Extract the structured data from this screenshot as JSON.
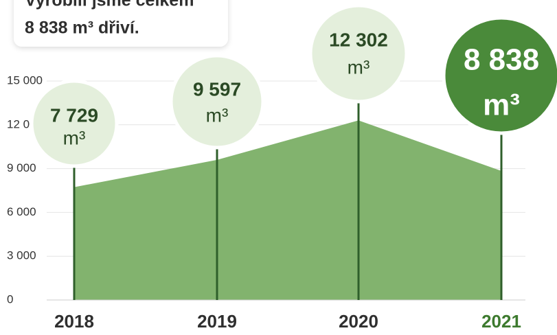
{
  "chart_data": {
    "type": "area",
    "title": "Vyrobili jsme celkem",
    "subtitle": "8 838 m³ dřiví.",
    "categories": [
      "2018",
      "2019",
      "2020",
      "2021"
    ],
    "values": [
      7729,
      9597,
      12302,
      8838
    ],
    "value_labels": [
      "7 729",
      "9 597",
      "12 302",
      "8 838"
    ],
    "unit": "m³",
    "color": "#82b36e",
    "line_color": "#2f5f2b",
    "bubble_colors": [
      "#e4efdc",
      "#e4efdc",
      "#e4efdc",
      "#4a8a3a"
    ],
    "bubble_text_colors": [
      "#2b4a25",
      "#2b4a25",
      "#2b4a25",
      "#ffffff"
    ],
    "category_colors": [
      "#2f2f2f",
      "#2f2f2f",
      "#2f2f2f",
      "#3d7a2e"
    ],
    "ylim": [
      0,
      15000
    ],
    "yticks": [
      0,
      {
        "value": 3000,
        "label": "3 000"
      },
      {
        "value": 6000,
        "label": "6 000"
      },
      {
        "value": 9000,
        "label": "9 000"
      },
      {
        "value": 12000,
        "label": "12 000"
      },
      {
        "value": 15000,
        "label": "15 000"
      }
    ],
    "grid": true
  }
}
